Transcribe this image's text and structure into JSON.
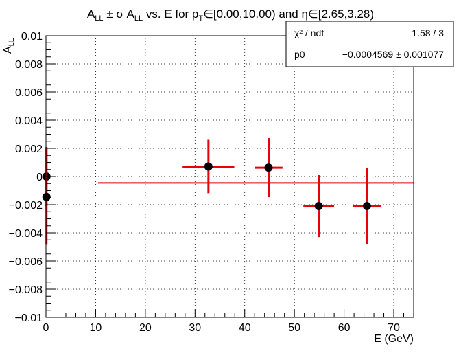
{
  "chart_data": {
    "type": "scatter",
    "title_parts": {
      "a": "A",
      "a_sub": "LL",
      "pm": " ± σ A",
      "pm_sub": "LL",
      "mid": " vs. E for p",
      "pt_sub": "T",
      "range1": "∈[0.00,10.00) and η∈[2.65,3.28)"
    },
    "xlabel": "E (GeV)",
    "ylabel_main": "A",
    "ylabel_sub": "LL",
    "xlim": [
      0,
      74
    ],
    "ylim": [
      -0.01,
      0.01
    ],
    "xticks": [
      0,
      10,
      20,
      30,
      40,
      50,
      60,
      70
    ],
    "xtick_labels": [
      "0",
      "10",
      "20",
      "30",
      "40",
      "50",
      "60",
      "70"
    ],
    "yticks": [
      -0.01,
      -0.008,
      -0.006,
      -0.004,
      -0.002,
      0,
      0.002,
      0.004,
      0.006,
      0.008,
      0.01
    ],
    "ytick_labels": [
      "−0.01",
      "−0.008",
      "−0.006",
      "−0.004",
      "−0.002",
      "0",
      "0.002",
      "0.004",
      "0.006",
      "0.008",
      "0.01"
    ],
    "grid": true,
    "marker_color": "#000000",
    "error_color": "#e8000b",
    "points": [
      {
        "x": 0.1,
        "y": 0.0,
        "xerr": 0.0,
        "yerr": 0.0021
      },
      {
        "x": 0.1,
        "y": -0.00145,
        "xerr": 0.0,
        "yerr": 0.0034
      },
      {
        "x": 32.7,
        "y": 0.00071,
        "xerr": 5.2,
        "yerr": 0.0019
      },
      {
        "x": 44.8,
        "y": 0.00063,
        "xerr": 2.8,
        "yerr": 0.0021
      },
      {
        "x": 54.9,
        "y": -0.0021,
        "xerr": 3.1,
        "yerr": 0.0022
      },
      {
        "x": 64.6,
        "y": -0.0021,
        "xerr": 2.9,
        "yerr": 0.0027
      }
    ],
    "fit": {
      "x_range": [
        10.5,
        74
      ],
      "p0": -0.0004569,
      "color": "#e8000b"
    },
    "stats": {
      "chi_label": "χ² / ndf",
      "chi_value": "1.58 / 3",
      "p0_label": "p0",
      "p0_value": "−0.0004569 ± 0.001077"
    }
  }
}
